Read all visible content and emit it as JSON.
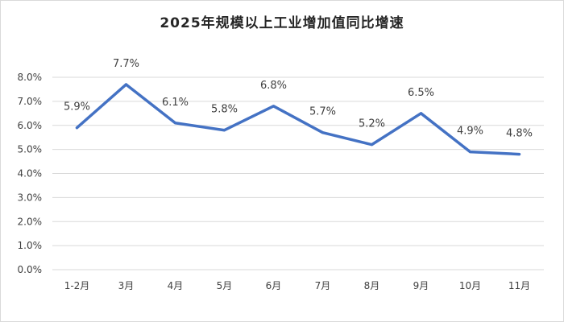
{
  "chart_data": {
    "type": "line",
    "title": "2025年规模以上工业增加值同比增速",
    "xlabel": "",
    "ylabel": "",
    "categories": [
      "1-2月",
      "3月",
      "4月",
      "5月",
      "6月",
      "7月",
      "8月",
      "9月",
      "10月",
      "11月"
    ],
    "series": [
      {
        "values": [
          5.9,
          7.7,
          6.1,
          5.8,
          6.8,
          5.7,
          5.2,
          6.5,
          4.9,
          4.8
        ],
        "labels": [
          "5.9%",
          "7.7%",
          "6.1%",
          "5.8%",
          "6.8%",
          "5.7%",
          "5.2%",
          "6.5%",
          "4.9%",
          "4.8%"
        ],
        "color": "#4472c4"
      }
    ],
    "ylim": [
      0,
      8
    ],
    "y_ticks": [
      0,
      1,
      2,
      3,
      4,
      5,
      6,
      7,
      8
    ],
    "y_tick_labels": [
      "0.0%",
      "1.0%",
      "2.0%",
      "3.0%",
      "4.0%",
      "5.0%",
      "6.0%",
      "7.0%",
      "8.0%"
    ],
    "grid": true,
    "legend": "none",
    "gridline_color": "#d9d9d9"
  }
}
